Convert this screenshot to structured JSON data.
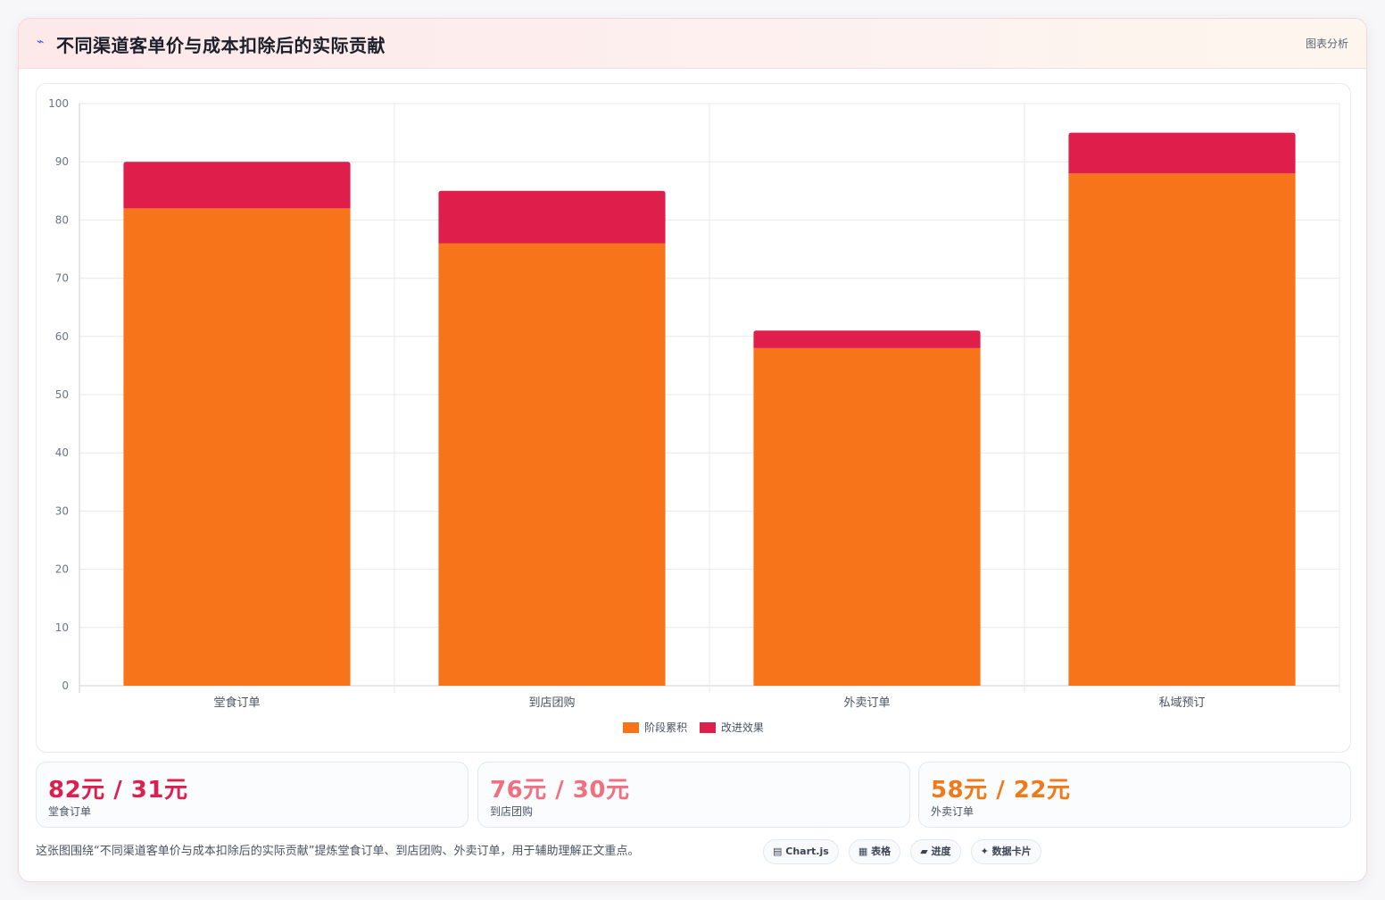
{
  "header": {
    "icon": "chart-line-icon",
    "icon_glyph": "⌁",
    "title": "不同渠道客单价与成本扣除后的实际贡献",
    "tag": "图表分析"
  },
  "chart_data": {
    "type": "bar",
    "stacked": true,
    "categories": [
      "堂食订单",
      "到店团购",
      "外卖订单",
      "私域预订"
    ],
    "series": [
      {
        "name": "阶段累积",
        "color": "#f7741a",
        "values": [
          82,
          76,
          58,
          88
        ]
      },
      {
        "name": "改进效果",
        "color": "#e01e4c",
        "values": [
          8,
          9,
          3,
          7
        ]
      }
    ],
    "ylim": [
      0,
      100
    ],
    "yticks": [
      0,
      10,
      20,
      30,
      40,
      50,
      60,
      70,
      80,
      90,
      100
    ],
    "title": "",
    "xlabel": "",
    "ylabel": "",
    "grid": true,
    "legend_position": "bottom-center"
  },
  "stats": [
    {
      "value": "82元 / 31元",
      "label": "堂食订单",
      "color": "#dc1f4e"
    },
    {
      "value": "76元 / 30元",
      "label": "到店团购",
      "color": "#f0707f"
    },
    {
      "value": "58元 / 22元",
      "label": "外卖订单",
      "color": "#f07a18"
    }
  ],
  "footer": {
    "text": "这张图围绕“不同渠道客单价与成本扣除后的实际贡献”提炼堂食订单、到店团购、外卖订单，用于辅助理解正文重点。",
    "pills": [
      {
        "icon": "▤",
        "label": "Chart.js"
      },
      {
        "icon": "▦",
        "label": "表格"
      },
      {
        "icon": "▰",
        "label": "进度"
      },
      {
        "icon": "✦",
        "label": "数据卡片"
      }
    ]
  }
}
